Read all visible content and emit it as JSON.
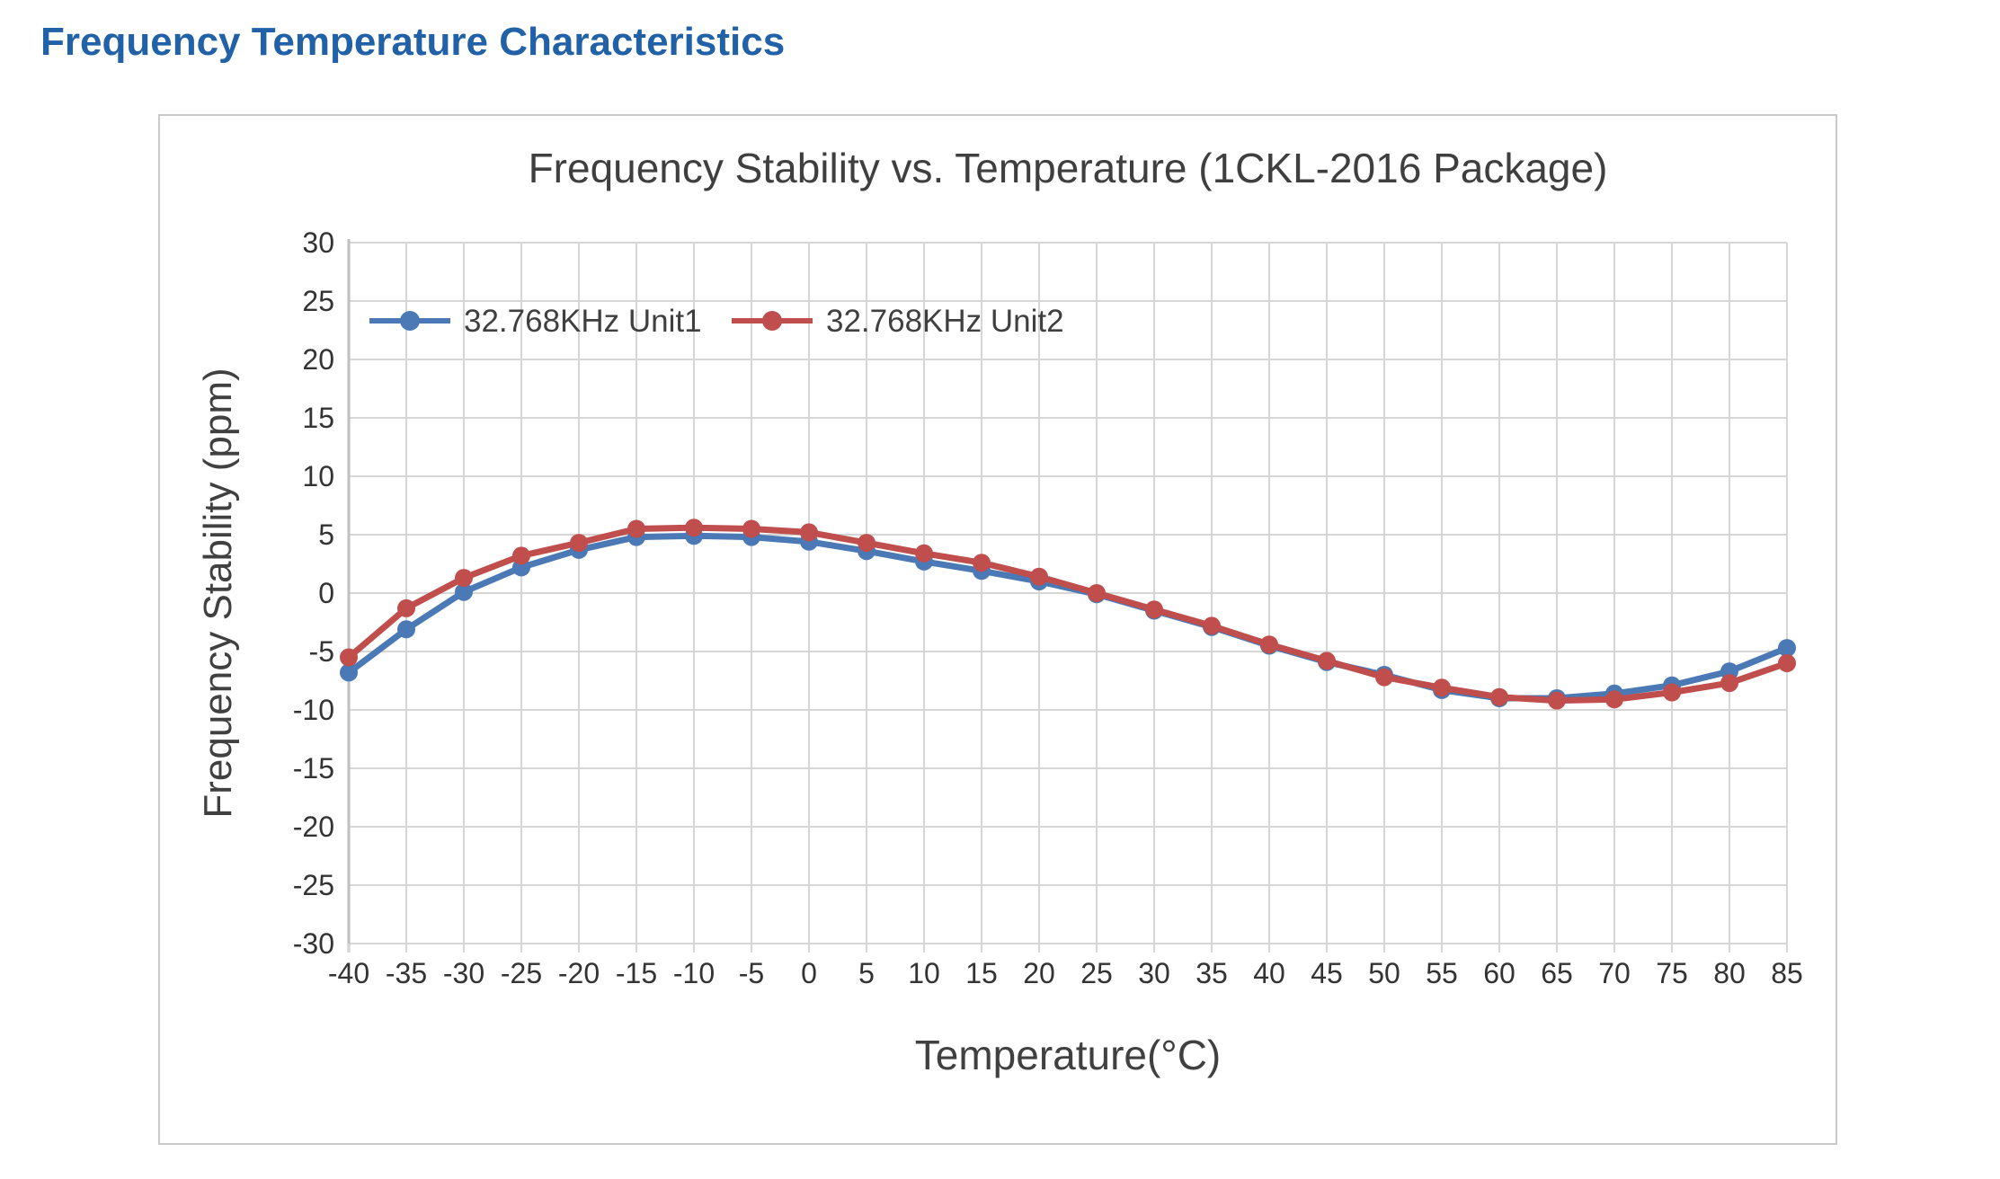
{
  "page": {
    "title": "Frequency Temperature Characteristics",
    "title_color": "#2161a8"
  },
  "chart_data": {
    "type": "line",
    "title": "Frequency Stability vs. Temperature (1CKL-2016 Package)",
    "xlabel": "Temperature(°C)",
    "ylabel": "Frequency Stability (ppm)",
    "x": [
      -40,
      -35,
      -30,
      -25,
      -20,
      -15,
      -10,
      -5,
      0,
      5,
      10,
      15,
      20,
      25,
      30,
      35,
      40,
      45,
      50,
      55,
      60,
      65,
      70,
      75,
      80,
      85
    ],
    "series": [
      {
        "name": "32.768KHz Unit1",
        "color": "#4a79b5",
        "values": [
          -6.8,
          -3.1,
          0.1,
          2.2,
          3.7,
          4.8,
          4.9,
          4.8,
          4.4,
          3.6,
          2.7,
          1.9,
          1.0,
          -0.1,
          -1.5,
          -2.9,
          -4.5,
          -5.9,
          -7.0,
          -8.3,
          -9.0,
          -9.0,
          -8.6,
          -7.9,
          -6.7,
          -4.7
        ]
      },
      {
        "name": "32.768KHz Unit2",
        "color": "#bf4e4c",
        "values": [
          -5.5,
          -1.3,
          1.3,
          3.2,
          4.3,
          5.5,
          5.6,
          5.5,
          5.2,
          4.3,
          3.4,
          2.6,
          1.4,
          0.0,
          -1.4,
          -2.8,
          -4.4,
          -5.8,
          -7.2,
          -8.1,
          -8.9,
          -9.2,
          -9.1,
          -8.5,
          -7.7,
          -6.0
        ]
      }
    ],
    "xlim": [
      -40,
      85
    ],
    "ylim": [
      -30,
      30
    ],
    "xtick_step": 5,
    "ytick_step": 5,
    "grid": true,
    "legend_position": "top-left-inside",
    "style": {
      "grid_color": "#d6d6d6",
      "axis_line_color": "#bfbfbf",
      "tick_text_color": "#333333",
      "title_text_color": "#3f3f3f",
      "axis_title_color": "#404040",
      "line_width": 7,
      "marker_radius": 10
    }
  }
}
